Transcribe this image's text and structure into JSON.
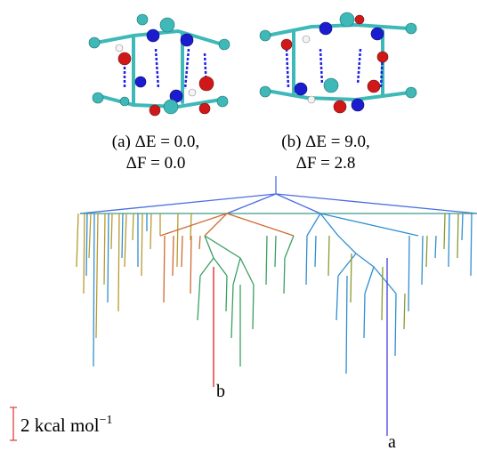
{
  "panels": [
    {
      "caption_line1": "(a) ΔE = 0.0,",
      "caption_line2": "ΔF = 0.0"
    },
    {
      "caption_line1": "(b) ΔE = 9.0,",
      "caption_line2": "ΔF = 2.8"
    }
  ],
  "tree_labels": {
    "b": "b",
    "a": "a"
  },
  "scale_bar": {
    "label": "2 kcal mol",
    "exponent": "−1"
  }
}
